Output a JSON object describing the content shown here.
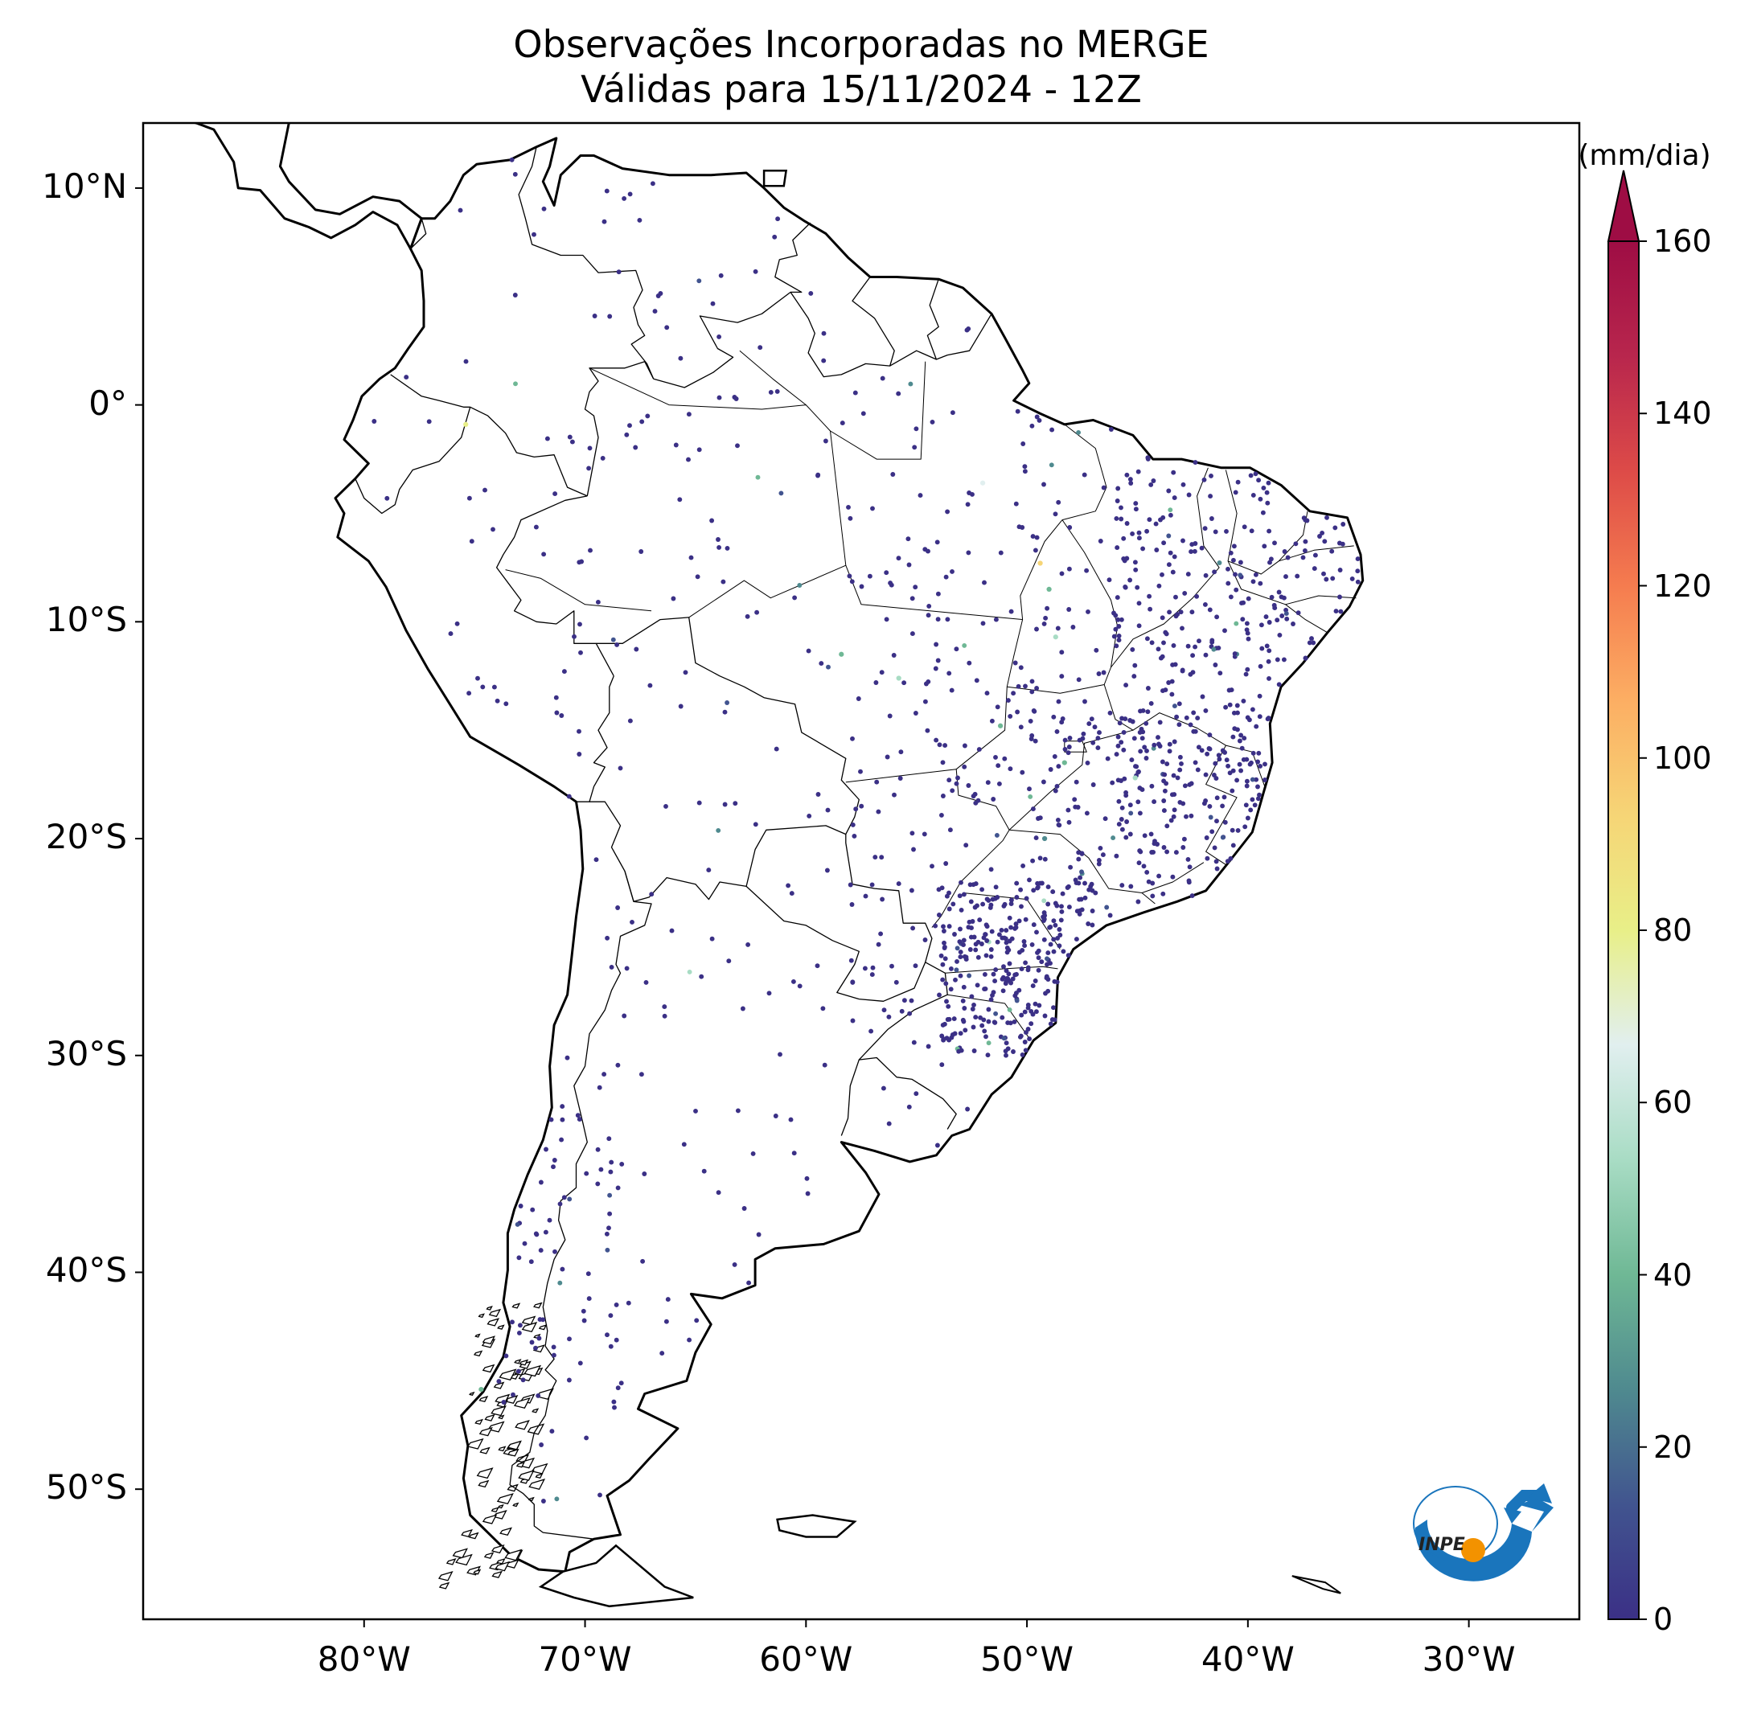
{
  "title_line1": "Observações Incorporadas no MERGE",
  "title_line2": "Válidas para 15/11/2024 - 12Z",
  "map": {
    "lon_range": [
      -90,
      -25
    ],
    "lat_range": [
      -56,
      13
    ],
    "lat_ticks": [
      {
        "value": 10,
        "label": "10°N"
      },
      {
        "value": 0,
        "label": "0°"
      },
      {
        "value": -10,
        "label": "10°S"
      },
      {
        "value": -20,
        "label": "20°S"
      },
      {
        "value": -30,
        "label": "30°S"
      },
      {
        "value": -40,
        "label": "40°S"
      },
      {
        "value": -50,
        "label": "50°S"
      }
    ],
    "lon_ticks": [
      {
        "value": -80,
        "label": "80°W"
      },
      {
        "value": -70,
        "label": "70°W"
      },
      {
        "value": -60,
        "label": "60°W"
      },
      {
        "value": -50,
        "label": "50°W"
      },
      {
        "value": -40,
        "label": "40°W"
      },
      {
        "value": -30,
        "label": "30°W"
      }
    ],
    "land_color": "#ffffff",
    "coast_color": "#000000"
  },
  "colorbar": {
    "units": "(mm/dia)",
    "range": [
      0,
      160
    ],
    "extend": "max",
    "ticks": [
      "0",
      "20",
      "40",
      "60",
      "80",
      "100",
      "120",
      "140",
      "160"
    ],
    "colors": [
      "#3b3086",
      "#41548f",
      "#4f8a8f",
      "#6fb895",
      "#a8dcc4",
      "#e1efef",
      "#e8ef88",
      "#f6d576",
      "#fcae63",
      "#f57c4f",
      "#dd4b48",
      "#b8264d",
      "#9e0d44"
    ]
  },
  "logo": {
    "text": "INPE",
    "blue": "#1a75bc",
    "orange": "#f39200"
  }
}
